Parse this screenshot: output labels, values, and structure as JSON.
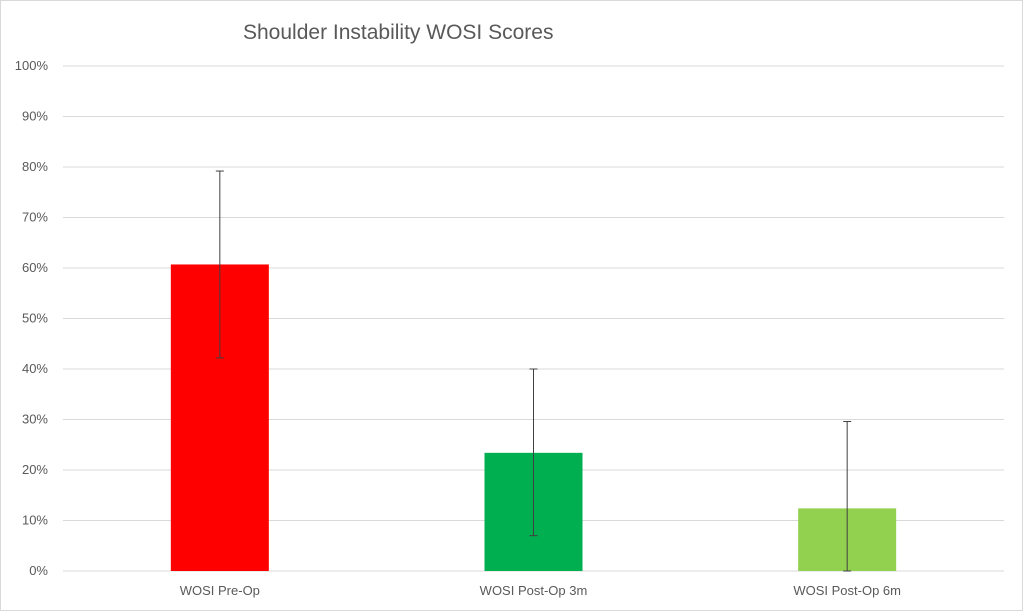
{
  "chart_data": {
    "type": "bar",
    "title": "Shoulder Instability WOSI Scores",
    "categories": [
      "WOSI Pre-Op",
      "WOSI Post-Op 3m",
      "WOSI Post-Op 6m"
    ],
    "values": [
      60.7,
      23.4,
      12.4
    ],
    "error_low": [
      42.2,
      7.0,
      0.0
    ],
    "error_high": [
      79.2,
      40.0,
      29.6
    ],
    "colors": [
      "#ff0000",
      "#00b050",
      "#92d050"
    ],
    "error_bar_color": "#404040",
    "ylim": [
      0,
      100
    ],
    "yticks": [
      0,
      10,
      20,
      30,
      40,
      50,
      60,
      70,
      80,
      90,
      100
    ],
    "y_tick_labels": [
      "0%",
      "10%",
      "20%",
      "30%",
      "40%",
      "50%",
      "60%",
      "70%",
      "80%",
      "90%",
      "100%"
    ],
    "grid": true,
    "legend": "none",
    "xlabel": "",
    "ylabel": ""
  }
}
